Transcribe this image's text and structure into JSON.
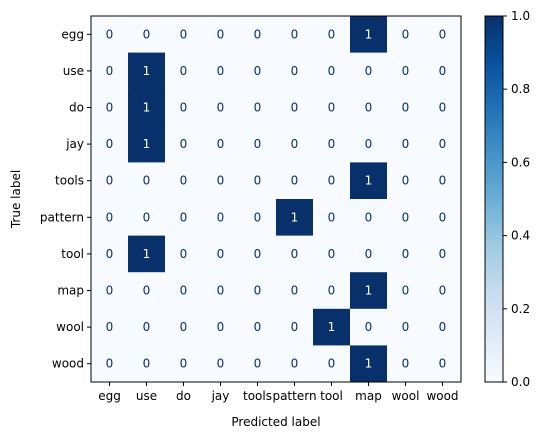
{
  "chart_data": {
    "type": "heatmap",
    "title": "",
    "xlabel": "Predicted label",
    "ylabel": "True label",
    "x_categories": [
      "egg",
      "use",
      "do",
      "jay",
      "tools",
      "pattern",
      "tool",
      "map",
      "wool",
      "wood"
    ],
    "y_categories": [
      "egg",
      "use",
      "do",
      "jay",
      "tools",
      "pattern",
      "tool",
      "map",
      "wool",
      "wood"
    ],
    "matrix": [
      [
        0,
        0,
        0,
        0,
        0,
        0,
        0,
        1,
        0,
        0
      ],
      [
        0,
        1,
        0,
        0,
        0,
        0,
        0,
        0,
        0,
        0
      ],
      [
        0,
        1,
        0,
        0,
        0,
        0,
        0,
        0,
        0,
        0
      ],
      [
        0,
        1,
        0,
        0,
        0,
        0,
        0,
        0,
        0,
        0
      ],
      [
        0,
        0,
        0,
        0,
        0,
        0,
        0,
        1,
        0,
        0
      ],
      [
        0,
        0,
        0,
        0,
        0,
        1,
        0,
        0,
        0,
        0
      ],
      [
        0,
        1,
        0,
        0,
        0,
        0,
        0,
        0,
        0,
        0
      ],
      [
        0,
        0,
        0,
        0,
        0,
        0,
        0,
        1,
        0,
        0
      ],
      [
        0,
        0,
        0,
        0,
        0,
        0,
        1,
        0,
        0,
        0
      ],
      [
        0,
        0,
        0,
        0,
        0,
        0,
        0,
        1,
        0,
        0
      ]
    ],
    "colorbar": {
      "range": [
        0.0,
        1.0
      ],
      "ticks": [
        "0.0",
        "0.2",
        "0.4",
        "0.6",
        "0.8",
        "1.0"
      ],
      "colormap": "Blues",
      "low_color": "#f7fbff",
      "high_color": "#08306b"
    },
    "text_color_low": "#08306b",
    "text_color_high": "#ffffff"
  }
}
